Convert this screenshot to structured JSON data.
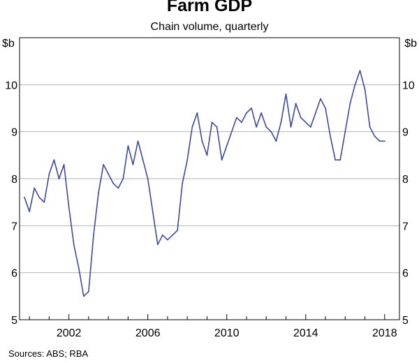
{
  "chart_data": {
    "type": "line",
    "title": "Farm GDP",
    "subtitle": "Chain volume, quarterly",
    "ylabel_left": "$b",
    "ylabel_right": "$b",
    "ylim": [
      5,
      11
    ],
    "yticks": [
      5,
      6,
      7,
      8,
      9,
      10
    ],
    "xlim": [
      1999.5,
      2018.75
    ],
    "xticks": [
      2002,
      2006,
      2010,
      2014,
      2018
    ],
    "xtick_labels": [
      "2002",
      "2006",
      "2010",
      "2014",
      "2018"
    ],
    "grid": true,
    "series": [
      {
        "name": "Farm GDP",
        "color": "#3b4a9c",
        "x": [
          1999.75,
          2000.0,
          2000.25,
          2000.5,
          2000.75,
          2001.0,
          2001.25,
          2001.5,
          2001.75,
          2002.0,
          2002.25,
          2002.5,
          2002.75,
          2003.0,
          2003.25,
          2003.5,
          2003.75,
          2004.0,
          2004.25,
          2004.5,
          2004.75,
          2005.0,
          2005.25,
          2005.5,
          2005.75,
          2006.0,
          2006.25,
          2006.5,
          2006.75,
          2007.0,
          2007.25,
          2007.5,
          2007.75,
          2008.0,
          2008.25,
          2008.5,
          2008.75,
          2009.0,
          2009.25,
          2009.5,
          2009.75,
          2010.0,
          2010.25,
          2010.5,
          2010.75,
          2011.0,
          2011.25,
          2011.5,
          2011.75,
          2012.0,
          2012.25,
          2012.5,
          2012.75,
          2013.0,
          2013.25,
          2013.5,
          2013.75,
          2014.0,
          2014.25,
          2014.5,
          2014.75,
          2015.0,
          2015.25,
          2015.5,
          2015.75,
          2016.0,
          2016.25,
          2016.5,
          2016.75,
          2017.0,
          2017.25,
          2017.5,
          2017.75,
          2018.0
        ],
        "values": [
          7.6,
          7.3,
          7.8,
          7.6,
          7.5,
          8.1,
          8.4,
          8.0,
          8.3,
          7.4,
          6.6,
          6.1,
          5.5,
          5.6,
          6.8,
          7.7,
          8.3,
          8.1,
          7.9,
          7.8,
          8.0,
          8.7,
          8.3,
          8.8,
          8.4,
          8.0,
          7.3,
          6.6,
          6.8,
          6.7,
          6.8,
          6.9,
          7.9,
          8.4,
          9.1,
          9.4,
          8.8,
          8.5,
          9.2,
          9.1,
          8.4,
          8.7,
          9.0,
          9.3,
          9.2,
          9.4,
          9.5,
          9.1,
          9.4,
          9.1,
          9.0,
          8.8,
          9.2,
          9.8,
          9.1,
          9.6,
          9.3,
          9.2,
          9.1,
          9.4,
          9.7,
          9.5,
          8.9,
          8.4,
          8.4,
          9.0,
          9.6,
          10.0,
          10.3,
          9.9,
          9.1,
          8.9,
          8.8,
          8.8
        ]
      }
    ],
    "source": "Sources: ABS; RBA"
  }
}
